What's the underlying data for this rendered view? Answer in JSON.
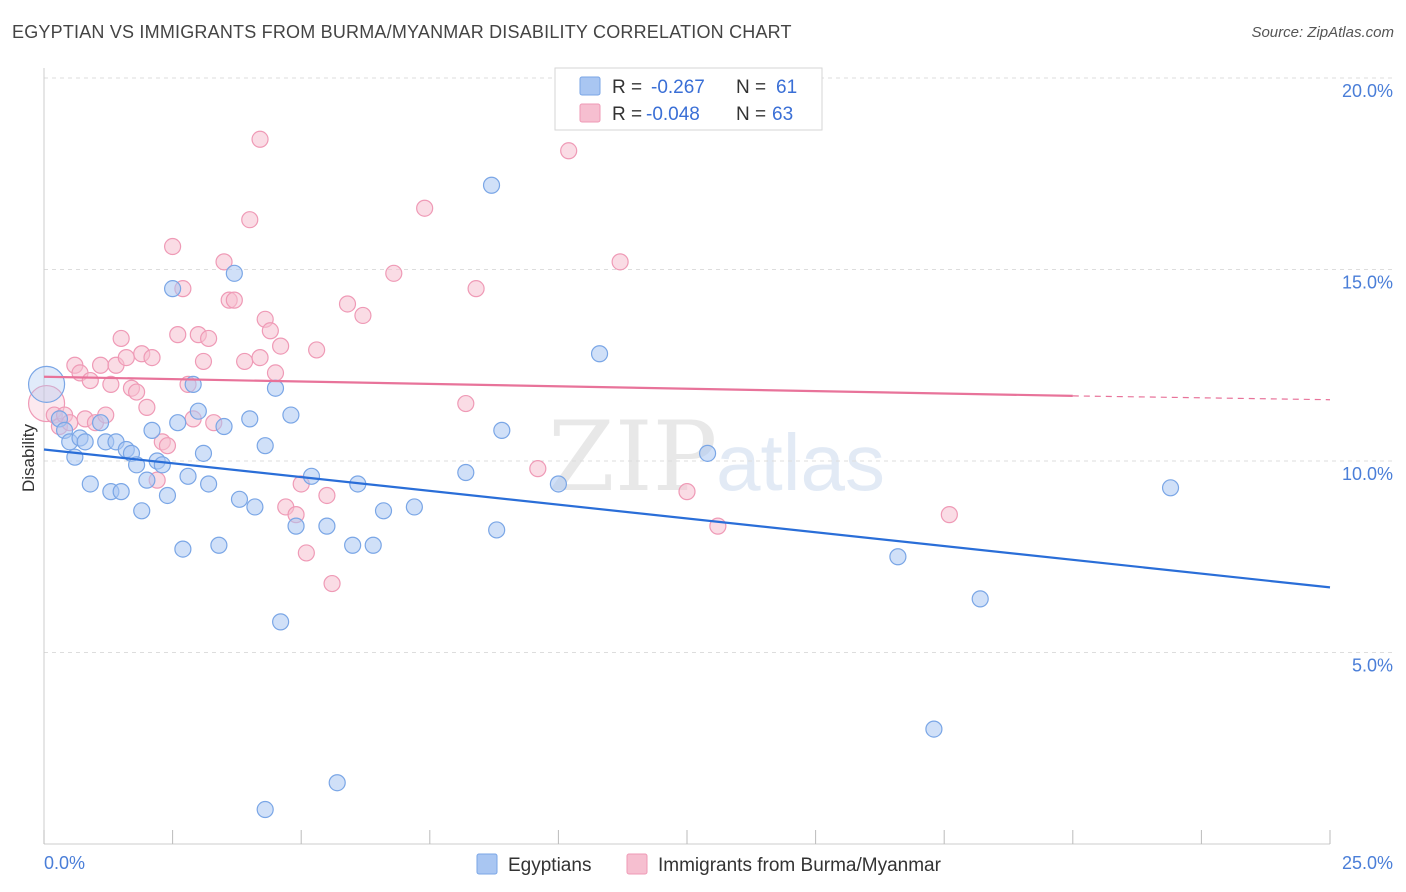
{
  "header": {
    "title": "EGYPTIAN VS IMMIGRANTS FROM BURMA/MYANMAR DISABILITY CORRELATION CHART",
    "source": "Source: ZipAtlas.com"
  },
  "watermark": {
    "zip": "ZIP",
    "atlas": "atlas"
  },
  "colors": {
    "blue_fill": "#a9c6f2",
    "blue_stroke": "#7aa6e6",
    "blue_line": "#2a6ed8",
    "pink_fill": "#f6bfd0",
    "pink_stroke": "#ef9ab6",
    "pink_line": "#e8739a",
    "tick_text": "#4a7ed8",
    "grid": "#dddddd"
  },
  "legend": {
    "r_label": "R =",
    "n_label": "N =",
    "series": [
      {
        "r": "-0.267",
        "n": "61"
      },
      {
        "r": "-0.048",
        "n": "63"
      }
    ]
  },
  "chart_data": {
    "type": "scatter",
    "title": "EGYPTIAN VS IMMIGRANTS FROM BURMA/MYANMAR DISABILITY CORRELATION CHART",
    "xlabel": "",
    "ylabel": "Disability",
    "xlim": [
      0,
      25
    ],
    "ylim": [
      0,
      20
    ],
    "x_tick_labels": [
      "0.0%",
      "25.0%"
    ],
    "y_ticks": [
      5,
      10,
      15,
      20
    ],
    "y_tick_labels": [
      "5.0%",
      "10.0%",
      "15.0%",
      "20.0%"
    ],
    "grid": true,
    "series": [
      {
        "name": "Egyptians",
        "trend": {
          "x": [
            0,
            25
          ],
          "y": [
            10.3,
            6.7
          ]
        },
        "points": [
          [
            0.05,
            12.0
          ],
          [
            0.3,
            11.1
          ],
          [
            0.4,
            10.8
          ],
          [
            0.5,
            10.5
          ],
          [
            0.6,
            10.1
          ],
          [
            0.7,
            10.6
          ],
          [
            0.8,
            10.5
          ],
          [
            0.9,
            9.4
          ],
          [
            1.1,
            11.0
          ],
          [
            1.2,
            10.5
          ],
          [
            1.3,
            9.2
          ],
          [
            1.4,
            10.5
          ],
          [
            1.5,
            9.2
          ],
          [
            1.6,
            10.3
          ],
          [
            1.7,
            10.2
          ],
          [
            1.8,
            9.9
          ],
          [
            1.9,
            8.7
          ],
          [
            2.0,
            9.5
          ],
          [
            2.1,
            10.8
          ],
          [
            2.2,
            10.0
          ],
          [
            2.3,
            9.9
          ],
          [
            2.4,
            9.1
          ],
          [
            2.5,
            14.5
          ],
          [
            2.6,
            11.0
          ],
          [
            2.7,
            7.7
          ],
          [
            2.8,
            9.6
          ],
          [
            2.9,
            12.0
          ],
          [
            3.0,
            11.3
          ],
          [
            3.1,
            10.2
          ],
          [
            3.2,
            9.4
          ],
          [
            3.4,
            7.8
          ],
          [
            3.5,
            10.9
          ],
          [
            3.7,
            14.9
          ],
          [
            3.8,
            9.0
          ],
          [
            4.0,
            11.1
          ],
          [
            4.1,
            8.8
          ],
          [
            4.3,
            10.4
          ],
          [
            4.5,
            11.9
          ],
          [
            4.6,
            5.8
          ],
          [
            4.8,
            11.2
          ],
          [
            4.9,
            8.3
          ],
          [
            5.2,
            9.6
          ],
          [
            5.5,
            8.3
          ],
          [
            5.7,
            1.6
          ],
          [
            6.0,
            7.8
          ],
          [
            6.1,
            9.4
          ],
          [
            6.4,
            7.8
          ],
          [
            6.6,
            8.7
          ],
          [
            7.2,
            8.8
          ],
          [
            8.2,
            9.7
          ],
          [
            8.7,
            17.2
          ],
          [
            8.8,
            8.2
          ],
          [
            8.9,
            10.8
          ],
          [
            10.0,
            9.4
          ],
          [
            10.8,
            12.8
          ],
          [
            12.9,
            10.2
          ],
          [
            16.6,
            7.5
          ],
          [
            17.3,
            3.0
          ],
          [
            18.2,
            6.4
          ],
          [
            21.9,
            9.3
          ],
          [
            4.3,
            0.9
          ]
        ]
      },
      {
        "name": "Immigrants from Burma/Myanmar",
        "trend": {
          "x": [
            0,
            20
          ],
          "y": [
            12.2,
            11.7
          ],
          "dashed_extension": {
            "x": [
              20,
              25
            ],
            "y": [
              11.7,
              11.6
            ]
          }
        },
        "points": [
          [
            0.05,
            11.5
          ],
          [
            0.2,
            11.2
          ],
          [
            0.3,
            10.9
          ],
          [
            0.4,
            11.2
          ],
          [
            0.5,
            11.0
          ],
          [
            0.6,
            12.5
          ],
          [
            0.7,
            12.3
          ],
          [
            0.8,
            11.1
          ],
          [
            0.9,
            12.1
          ],
          [
            1.0,
            11.0
          ],
          [
            1.1,
            12.5
          ],
          [
            1.2,
            11.2
          ],
          [
            1.3,
            12.0
          ],
          [
            1.4,
            12.5
          ],
          [
            1.5,
            13.2
          ],
          [
            1.6,
            12.7
          ],
          [
            1.7,
            11.9
          ],
          [
            1.8,
            11.8
          ],
          [
            1.9,
            12.8
          ],
          [
            2.0,
            11.4
          ],
          [
            2.1,
            12.7
          ],
          [
            2.2,
            9.5
          ],
          [
            2.3,
            10.5
          ],
          [
            2.4,
            10.4
          ],
          [
            2.5,
            15.6
          ],
          [
            2.6,
            13.3
          ],
          [
            2.7,
            14.5
          ],
          [
            2.8,
            12.0
          ],
          [
            2.9,
            11.1
          ],
          [
            3.0,
            13.3
          ],
          [
            3.1,
            12.6
          ],
          [
            3.2,
            13.2
          ],
          [
            3.3,
            11.0
          ],
          [
            3.5,
            15.2
          ],
          [
            3.6,
            14.2
          ],
          [
            3.7,
            14.2
          ],
          [
            3.9,
            12.6
          ],
          [
            4.0,
            16.3
          ],
          [
            4.2,
            12.7
          ],
          [
            4.3,
            13.7
          ],
          [
            4.4,
            13.4
          ],
          [
            4.5,
            12.3
          ],
          [
            4.6,
            13.0
          ],
          [
            4.7,
            8.8
          ],
          [
            4.9,
            8.6
          ],
          [
            5.0,
            9.4
          ],
          [
            5.1,
            7.6
          ],
          [
            5.3,
            12.9
          ],
          [
            5.5,
            9.1
          ],
          [
            5.6,
            6.8
          ],
          [
            5.9,
            14.1
          ],
          [
            6.2,
            13.8
          ],
          [
            6.8,
            14.9
          ],
          [
            7.4,
            16.6
          ],
          [
            8.2,
            11.5
          ],
          [
            8.4,
            14.5
          ],
          [
            9.6,
            9.8
          ],
          [
            10.2,
            18.1
          ],
          [
            11.2,
            15.2
          ],
          [
            12.5,
            9.2
          ],
          [
            13.1,
            8.3
          ],
          [
            17.6,
            8.6
          ],
          [
            4.2,
            18.4
          ]
        ]
      }
    ]
  }
}
